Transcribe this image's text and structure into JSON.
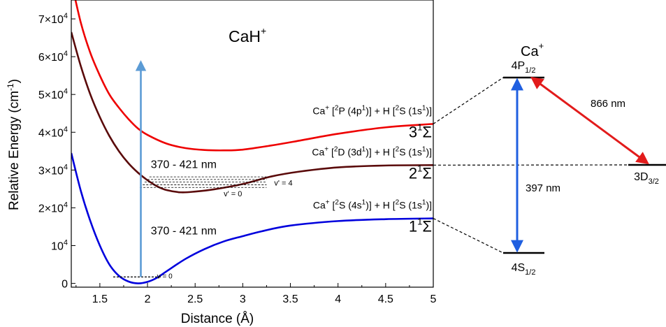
{
  "chart_data": {
    "type": "line",
    "xlabel": "Distance (Å)",
    "ylabel_main": "Relative Energy (cm",
    "ylabel_exp": "-1",
    "ylabel_close": ")",
    "xlim": [
      1.2,
      5.0
    ],
    "ylim": [
      -1000,
      75000
    ],
    "x_ticks": [
      {
        "value": 1.5,
        "label": "1.5"
      },
      {
        "value": 2.0,
        "label": "2"
      },
      {
        "value": 2.5,
        "label": "2.5"
      },
      {
        "value": 3.0,
        "label": "3"
      },
      {
        "value": 3.5,
        "label": "3.5"
      },
      {
        "value": 4.0,
        "label": "4"
      },
      {
        "value": 4.5,
        "label": "4.5"
      },
      {
        "value": 5.0,
        "label": "5"
      }
    ],
    "y_ticks": [
      {
        "value": 0,
        "base": "0",
        "exp": ""
      },
      {
        "value": 10000,
        "base": "10",
        "exp": "4"
      },
      {
        "value": 20000,
        "base": "2×10",
        "exp": "4"
      },
      {
        "value": 30000,
        "base": "3×10",
        "exp": "4"
      },
      {
        "value": 40000,
        "base": "4×10",
        "exp": "4"
      },
      {
        "value": 50000,
        "base": "5×10",
        "exp": "4"
      },
      {
        "value": 60000,
        "base": "6×10",
        "exp": "4"
      },
      {
        "value": 70000,
        "base": "7×10",
        "exp": "4"
      }
    ],
    "molecule_label": "CaH",
    "molecule_charge": "+",
    "series": [
      {
        "color": "#0000dd",
        "x": [
          1.2,
          1.3,
          1.4,
          1.5,
          1.6,
          1.7,
          1.8,
          1.9,
          2.0,
          2.1,
          2.2,
          2.4,
          2.6,
          2.8,
          3.0,
          3.2,
          3.5,
          4.0,
          4.5,
          5.0
        ],
        "y": [
          34500,
          24500,
          16500,
          10000,
          5000,
          2000,
          500,
          0,
          400,
          1500,
          3200,
          6500,
          9100,
          11100,
          12500,
          13800,
          15300,
          16500,
          17000,
          17200
        ]
      },
      {
        "color": "#5a0a0a",
        "x": [
          1.2,
          1.3,
          1.4,
          1.5,
          1.6,
          1.7,
          1.8,
          1.9,
          2.0,
          2.1,
          2.2,
          2.35,
          2.5,
          2.7,
          3.0,
          3.3,
          3.6,
          4.0,
          4.5,
          5.0
        ],
        "y": [
          66500,
          57500,
          50000,
          44000,
          39000,
          35000,
          31800,
          29300,
          27300,
          25700,
          24700,
          24100,
          24300,
          24900,
          26300,
          28300,
          29600,
          30700,
          31200,
          31300
        ]
      },
      {
        "color": "#ee0000",
        "x": [
          1.2,
          1.3,
          1.4,
          1.5,
          1.6,
          1.7,
          1.8,
          1.9,
          2.0,
          2.2,
          2.4,
          2.6,
          2.8,
          3.0,
          3.3,
          3.6,
          4.0,
          4.5,
          5.0
        ],
        "y": [
          80000,
          69000,
          61000,
          55000,
          50000,
          46500,
          43500,
          41000,
          39300,
          37000,
          35800,
          35300,
          35200,
          35400,
          36500,
          37800,
          39600,
          41300,
          42200
        ]
      }
    ],
    "state_labels": [
      {
        "base": "3",
        "sup": "1",
        "sym": "Σ",
        "x": 5.0,
        "y": 42200
      },
      {
        "base": "2",
        "sup": "1",
        "sym": "Σ",
        "x": 5.0,
        "y": 31300
      },
      {
        "base": "1",
        "sup": "1",
        "sym": "Σ",
        "x": 5.0,
        "y": 17200
      }
    ],
    "asymptote_labels": [
      {
        "parts": [
          "Ca",
          "+",
          " [",
          "2",
          "P (4p",
          "1",
          ")] + H [",
          "2",
          "S (1s",
          "1",
          ")]"
        ],
        "x": 5.0,
        "y": 42200
      },
      {
        "parts": [
          "Ca",
          "+",
          " [",
          "2",
          "D (3d",
          "1",
          ")] + H [",
          "2",
          "S (1s",
          "1",
          ")]"
        ],
        "x": 5.0,
        "y": 31300
      },
      {
        "parts": [
          "Ca",
          "+",
          " [",
          "2",
          "S (4s",
          "1",
          ")] + H [",
          "2",
          "S (1s",
          "1",
          ")]"
        ],
        "x": 5.0,
        "y": 17200
      }
    ],
    "vibrational_levels": {
      "ground": {
        "label": "v = 0",
        "x_start": 1.64,
        "x_end": 2.15,
        "y": 1700
      },
      "excited_x_start": [
        1.92,
        1.95,
        1.97,
        2.0,
        2.02
      ],
      "excited_x_end": 3.25,
      "excited_y": [
        25400,
        26100,
        26800,
        27500,
        28200
      ],
      "v_low_label": "v' = 0",
      "v_high_label": "v' = 4"
    },
    "arrows": [
      {
        "x": 1.93,
        "y_from": 1700,
        "y_to": 58500,
        "color": "#5b9bd5"
      }
    ],
    "annotations": [
      {
        "text": "370 - 421 nm",
        "x": 2.38,
        "y": 30500
      },
      {
        "text": "370 - 421 nm",
        "x": 2.38,
        "y": 13000
      }
    ],
    "ion_diagram": {
      "title": "Ca",
      "title_charge": "+",
      "levels": [
        {
          "base": "4P",
          "sub": "1/2",
          "y": 42200
        },
        {
          "base": "3D",
          "sub": "3/2",
          "y": 31300
        },
        {
          "base": "4S",
          "sub": "1/2",
          "y": 17200
        }
      ],
      "transitions": [
        {
          "label": "397 nm",
          "color": "#1f5fe0"
        },
        {
          "label": "866 nm",
          "color": "#e21b1b"
        }
      ]
    }
  }
}
